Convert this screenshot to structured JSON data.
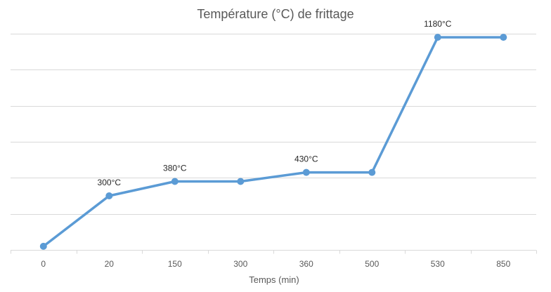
{
  "chart_data": {
    "type": "line",
    "title": "Température (°C) de frittage",
    "xlabel": "Temps (min)",
    "ylabel": "",
    "categories": [
      "0",
      "20",
      "150",
      "300",
      "360",
      "500",
      "530",
      "850"
    ],
    "series": [
      {
        "values": [
          20,
          300,
          380,
          380,
          430,
          430,
          1180,
          1180
        ]
      }
    ],
    "data_labels": [
      {
        "index": 1,
        "text": "300°C"
      },
      {
        "index": 2,
        "text": "380°C"
      },
      {
        "index": 4,
        "text": "430°C"
      },
      {
        "index": 6,
        "text": "1180°C"
      }
    ],
    "ylim": [
      0,
      1200
    ],
    "y_gridline_step": 200,
    "y_tick_labels_visible": false,
    "grid": true,
    "legend": "none",
    "colors": {
      "line": "#5b9bd5",
      "grid": "#d9d9d9",
      "text": "#595959"
    }
  }
}
